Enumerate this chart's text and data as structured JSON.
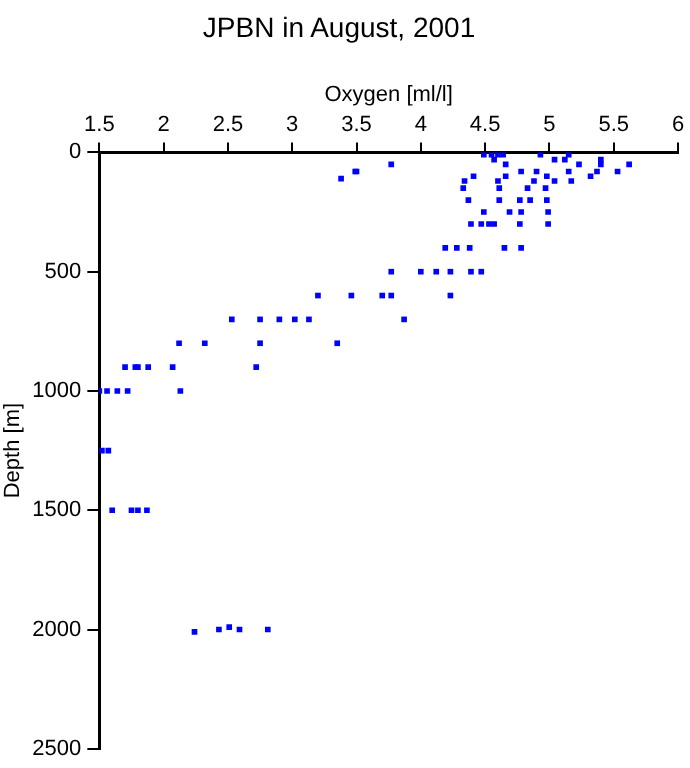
{
  "chart_data": {
    "type": "scatter",
    "title": "JPBN in August, 2001",
    "xlabel": "Oxygen [ml/l]",
    "ylabel": "Depth [m]",
    "xlim": [
      1.5,
      6
    ],
    "xticks": [
      1.5,
      2,
      2.5,
      3,
      3.5,
      4,
      4.5,
      5,
      5.5,
      6
    ],
    "ylim": [
      2500,
      0
    ],
    "yticks": [
      0,
      500,
      1000,
      1500,
      2000,
      2500
    ],
    "grid": false,
    "legend": false,
    "marker": "square",
    "series": [
      {
        "color": "#0000ff",
        "x": [
          2.24,
          2.43,
          2.51,
          2.59,
          2.81,
          1.6,
          1.75,
          1.8,
          1.87,
          1.52,
          1.57,
          1.5,
          1.56,
          1.64,
          1.72,
          2.13,
          1.7,
          1.78,
          1.8,
          1.88,
          2.07,
          2.72,
          2.12,
          2.32,
          2.75,
          3.35,
          2.53,
          2.75,
          2.9,
          3.02,
          3.13,
          3.87,
          3.2,
          3.46,
          3.7,
          3.77,
          4.23,
          3.77,
          4.0,
          4.12,
          4.23,
          4.39,
          4.47,
          4.19,
          4.28,
          4.38,
          4.65,
          4.78,
          4.39,
          4.47,
          4.53,
          4.57,
          4.77,
          4.99,
          4.49,
          4.69,
          4.78,
          4.99,
          4.37,
          4.61,
          4.77,
          4.85,
          4.98,
          4.33,
          4.61,
          4.83,
          4.97,
          4.34,
          4.6,
          4.88,
          5.04,
          5.17,
          4.41,
          4.66,
          4.98,
          5.32,
          4.78,
          4.9,
          5.15,
          5.37,
          5.53,
          3.38,
          3.49,
          3.5,
          3.77,
          4.66,
          5.23,
          5.4,
          5.62,
          4.57,
          5.04,
          5.12,
          5.4,
          4.49,
          4.55,
          4.6,
          4.64,
          4.93,
          5.15
        ],
        "values": [
          2010,
          2000,
          1990,
          2000,
          2000,
          1500,
          1500,
          1500,
          1500,
          1250,
          1250,
          1000,
          1000,
          1000,
          1000,
          1000,
          900,
          900,
          900,
          900,
          900,
          900,
          800,
          800,
          800,
          800,
          700,
          700,
          700,
          700,
          700,
          700,
          600,
          600,
          600,
          600,
          600,
          500,
          500,
          500,
          500,
          500,
          500,
          400,
          400,
          400,
          400,
          400,
          300,
          300,
          300,
          300,
          300,
          300,
          250,
          250,
          250,
          250,
          200,
          200,
          200,
          200,
          200,
          150,
          150,
          150,
          150,
          120,
          120,
          120,
          120,
          120,
          100,
          100,
          100,
          100,
          80,
          80,
          80,
          80,
          80,
          110,
          80,
          80,
          50,
          50,
          50,
          50,
          50,
          30,
          30,
          30,
          30,
          10,
          10,
          10,
          10,
          10,
          10
        ]
      }
    ]
  }
}
